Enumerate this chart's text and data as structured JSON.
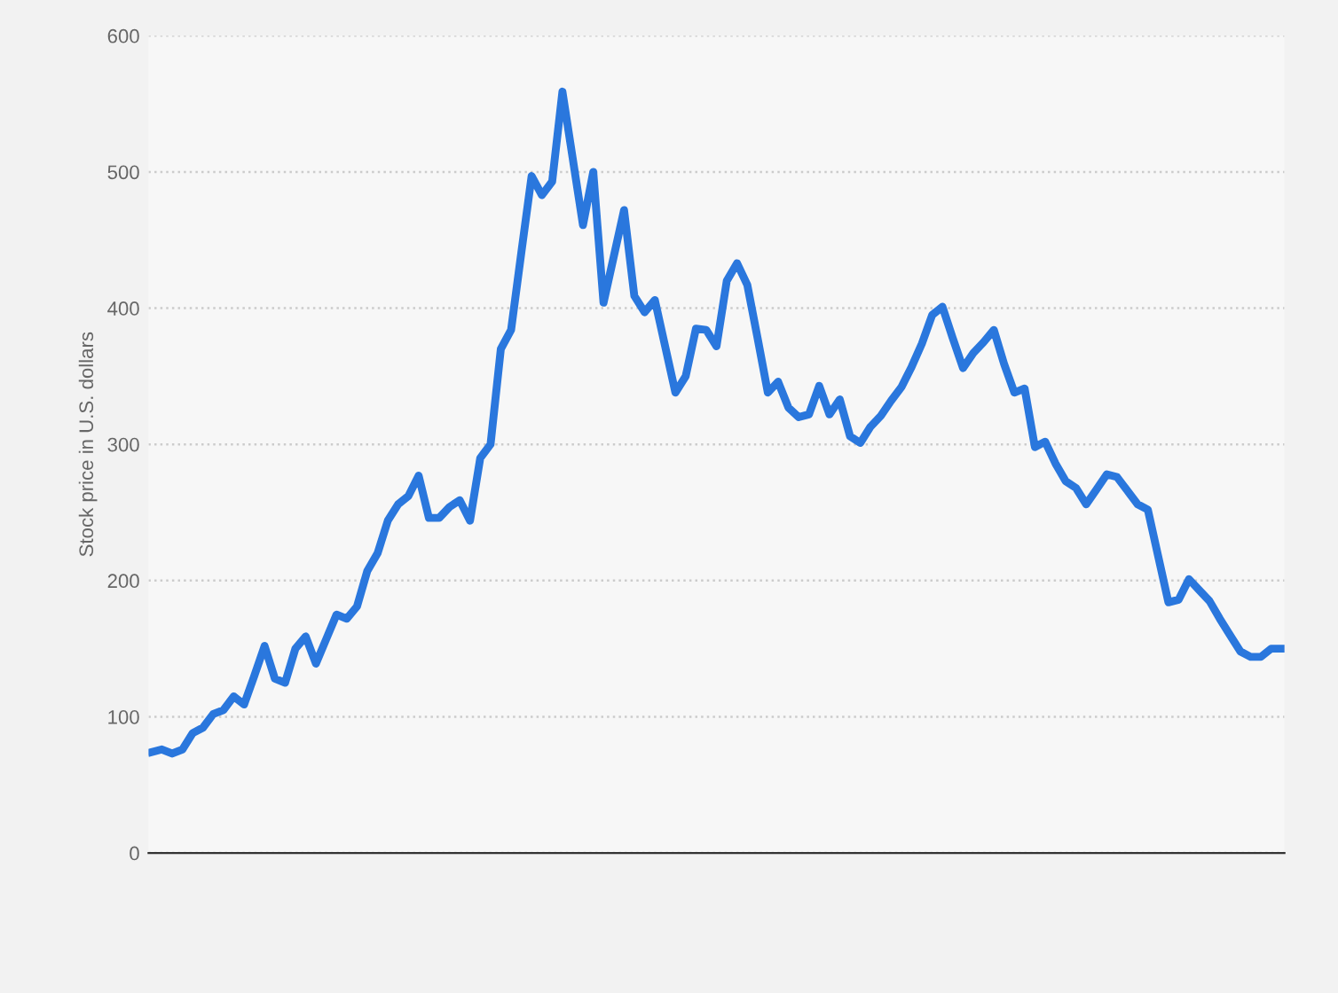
{
  "chart_data": {
    "type": "line",
    "ylabel": "Stock price in U.S. dollars",
    "categories": [
      null,
      null,
      null,
      null,
      null,
      null,
      null,
      null,
      null,
      null,
      null,
      null,
      null,
      null,
      null,
      null,
      null,
      null,
      null,
      null,
      null,
      null,
      null,
      null,
      null,
      null,
      null,
      null,
      null,
      null,
      null,
      null,
      null,
      null,
      null,
      null,
      null,
      null,
      null,
      null,
      null,
      null,
      null,
      null,
      null,
      null,
      null,
      null,
      null,
      null,
      null,
      null,
      null,
      null,
      null,
      null,
      null,
      null,
      null,
      null,
      null,
      null,
      null,
      null,
      null,
      null,
      null,
      null,
      null,
      null,
      null,
      null,
      null,
      null,
      null,
      null,
      null,
      null,
      null,
      null,
      null,
      null,
      null,
      null,
      null,
      null,
      null,
      null,
      null,
      null,
      null,
      null,
      null,
      null,
      null,
      null,
      null,
      null,
      null,
      null,
      null,
      null,
      null,
      null,
      null,
      null,
      null,
      null,
      null,
      null,
      null
    ],
    "series": [
      {
        "color": "#2a77dd",
        "values": [
          74,
          76,
          73,
          76,
          88,
          92,
          102,
          105,
          115,
          109,
          130,
          152,
          128,
          125,
          150,
          159,
          139,
          157,
          175,
          172,
          181,
          207,
          220,
          244,
          256,
          262,
          277,
          246,
          246,
          254,
          259,
          244,
          290,
          300,
          370,
          384,
          441,
          497,
          483,
          493,
          559,
          510,
          461,
          500,
          404,
          438,
          472,
          409,
          397,
          406,
          372,
          338,
          350,
          385,
          384,
          372,
          420,
          433,
          417,
          378,
          338,
          346,
          327,
          320,
          322,
          343,
          322,
          333,
          306,
          301,
          313,
          321,
          332,
          342,
          357,
          374,
          395,
          401,
          378,
          356,
          367,
          375,
          384,
          359,
          338,
          341,
          298,
          302,
          286,
          273,
          268,
          256,
          267,
          278,
          276,
          266,
          256,
          252,
          218,
          184,
          186,
          201,
          193,
          185,
          172,
          160,
          148,
          144,
          144,
          150,
          150
        ]
      }
    ],
    "ylim": [
      0,
      600
    ],
    "yticks": [
      0,
      100,
      200,
      300,
      400,
      500,
      600
    ],
    "grid": "y",
    "tick_labels": "y",
    "legend": false,
    "marker": "none",
    "line_style": "solid"
  }
}
